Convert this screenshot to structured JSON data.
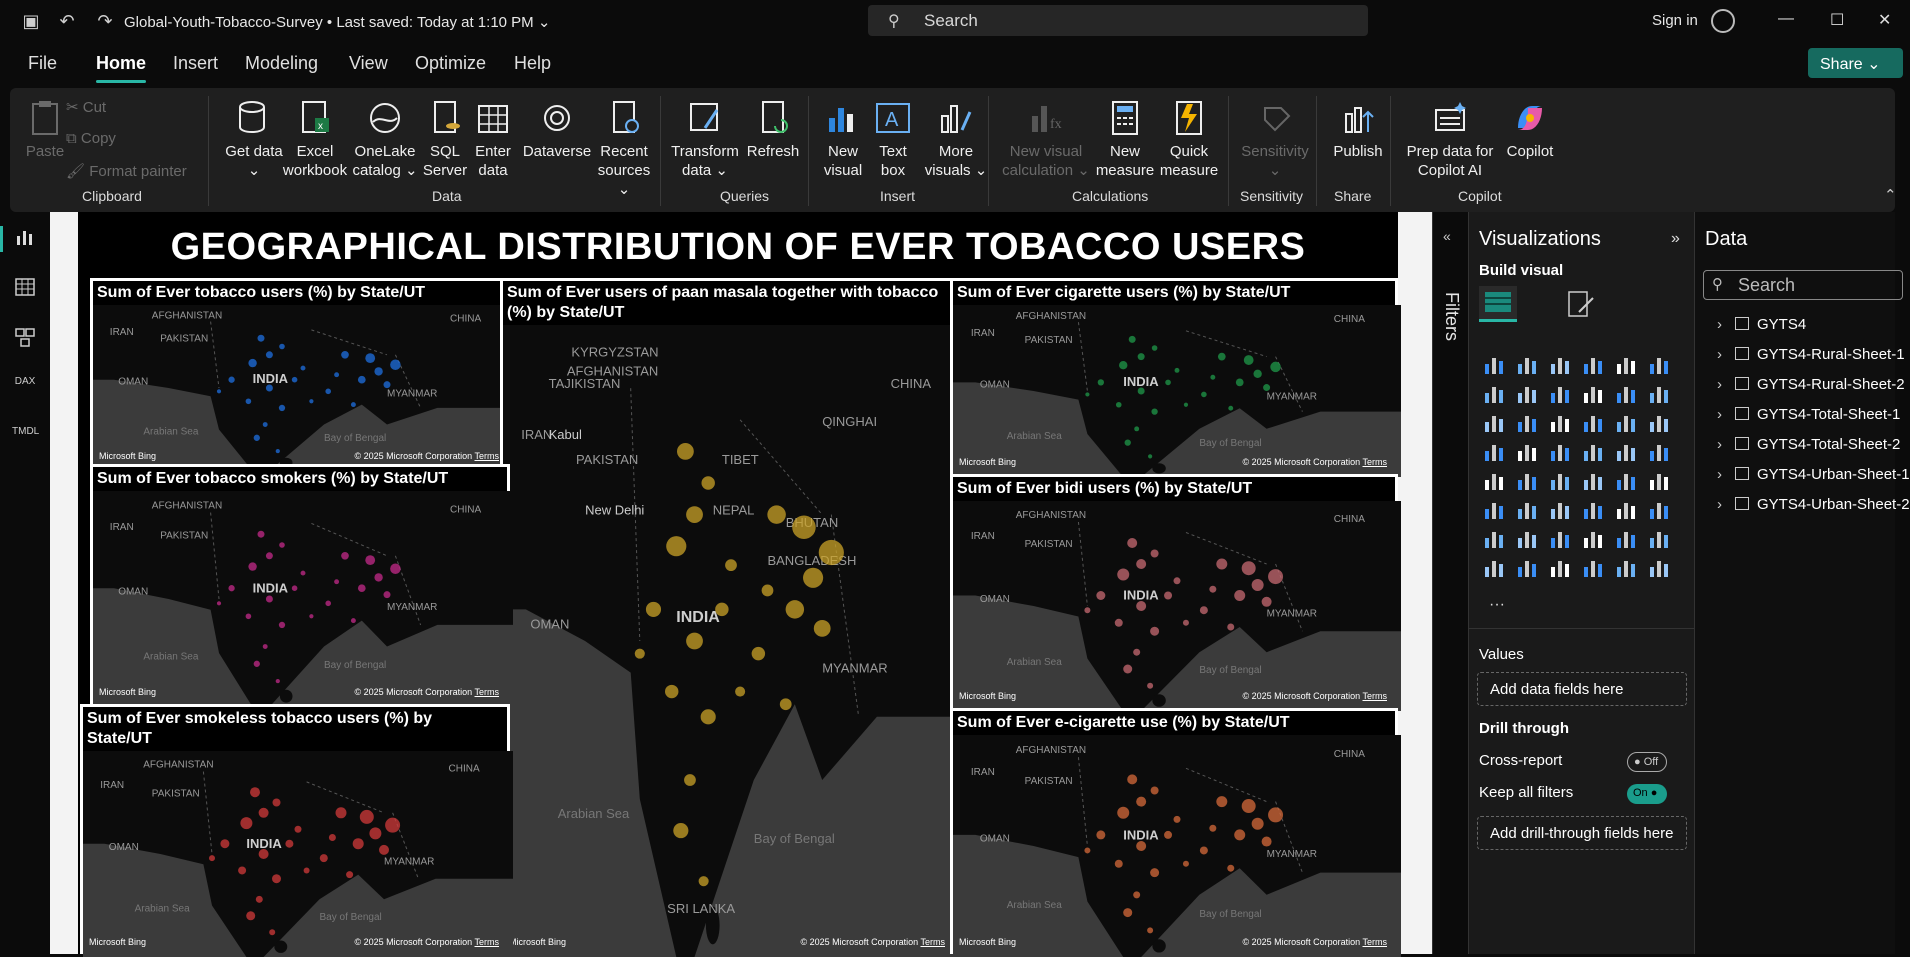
{
  "titlebar": {
    "doc_title": "Global-Youth-Tobacco-Survey",
    "saved": "Last saved: Today at 1:10 PM",
    "search_placeholder": "Search",
    "signin": "Sign in"
  },
  "menu": [
    "File",
    "Home",
    "Insert",
    "Modeling",
    "View",
    "Optimize",
    "Help"
  ],
  "share_label": "Share",
  "ribbon": {
    "clipboard": {
      "paste": "Paste",
      "cut": "Cut",
      "copy": "Copy",
      "format_painter": "Format painter",
      "group": "Clipboard"
    },
    "data": {
      "get_data": "Get data",
      "excel": "Excel workbook",
      "onelake": "OneLake catalog",
      "sql": "SQL Server",
      "enter": "Enter data",
      "dataverse": "Dataverse",
      "recent": "Recent sources",
      "group": "Data"
    },
    "queries": {
      "transform": "Transform data",
      "refresh": "Refresh",
      "group": "Queries"
    },
    "insert": {
      "new_visual": "New visual",
      "text_box": "Text box",
      "more_visuals": "More visuals",
      "group": "Insert"
    },
    "calculations": {
      "new_visual_calc": "New visual calculation",
      "new_measure": "New measure",
      "quick_measure": "Quick measure",
      "group": "Calculations"
    },
    "sensitivity": {
      "label": "Sensitivity",
      "group": "Sensitivity"
    },
    "share": {
      "publish": "Publish",
      "group": "Share"
    },
    "copilot": {
      "prep": "Prep data for Copilot AI",
      "copilot": "Copilot",
      "group": "Copilot"
    }
  },
  "report": {
    "title": "GEOGRAPHICAL DISTRIBUTION OF EVER TOBACCO USERS",
    "visuals": [
      {
        "title": "Sum of Ever tobacco users (%) by State/UT",
        "color": "#1e6fe0"
      },
      {
        "title": "Sum of Ever users of paan masala together with tobacco (%) by State/UT",
        "color": "#c9a227"
      },
      {
        "title": "Sum of Ever cigarette users (%) by State/UT",
        "color": "#1f9a4a"
      },
      {
        "title": "Sum of Ever tobacco smokers (%) by State/UT",
        "color": "#c42a8a"
      },
      {
        "title": "Sum of Ever bidi users (%) by State/UT",
        "color": "#c76a72"
      },
      {
        "title": "Sum of Ever smokeless tobacco users (%) by State/UT",
        "color": "#d23a3a"
      },
      {
        "title": "Sum of Ever e-cigarette use (%) by State/UT",
        "color": "#d66a3a"
      }
    ],
    "map_labels": {
      "india": "INDIA",
      "pakistan": "PAKISTAN",
      "afghanistan": "AFGHANISTAN",
      "iran": "IRAN",
      "oman": "OMAN",
      "myanmar": "MYANMAR",
      "china": "CHINA",
      "arabian_sea": "Arabian Sea",
      "bay": "Bay of Bengal",
      "nepal": "NEPAL",
      "bhutan": "BHUTAN",
      "bangladesh": "BANGLADESH",
      "tibet": "TIBET",
      "kabul": "Kabul",
      "new_delhi": "New Delhi",
      "kyrgyzstan": "KYRGYZSTAN",
      "tajikistan": "TAJIKISTAN",
      "qinghai": "QINGHAI",
      "sri_lanka": "SRI LANKA",
      "bing": "Microsoft Bing",
      "copyright": "© 2025 Microsoft Corporation",
      "terms": "Terms"
    }
  },
  "filters_label": "Filters",
  "visualizations": {
    "title": "Visualizations",
    "build": "Build visual",
    "values": "Values",
    "add_data": "Add data fields here",
    "drill": "Drill through",
    "cross_report": "Cross-report",
    "cross_state": "Off",
    "keep_filters": "Keep all filters",
    "keep_state": "On",
    "add_drill": "Add drill-through fields here"
  },
  "data_pane": {
    "title": "Data",
    "search": "Search",
    "tables": [
      "GYTS4",
      "GYTS4-Rural-Sheet-1",
      "GYTS4-Rural-Sheet-2",
      "GYTS4-Total-Sheet-1",
      "GYTS4-Total-Sheet-2",
      "GYTS4-Urban-Sheet-1",
      "GYTS4-Urban-Sheet-2"
    ]
  }
}
